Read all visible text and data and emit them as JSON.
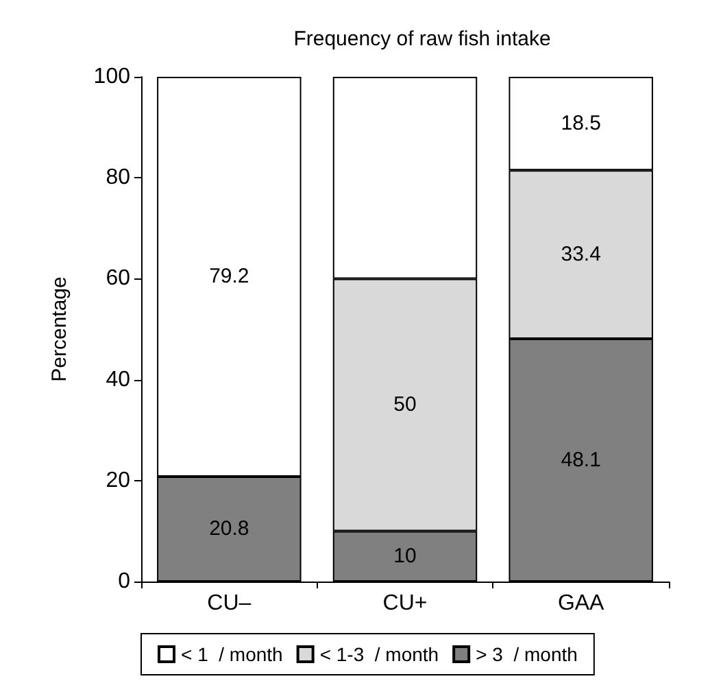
{
  "chart_data": {
    "type": "bar",
    "stacked": true,
    "title": "Frequency of raw fish intake",
    "ylabel": "Percentage",
    "categories": [
      "CU–",
      "CU+",
      "GAA"
    ],
    "series": [
      {
        "name": "> 3  / month",
        "color": "#808080",
        "values": [
          20.8,
          10,
          48.1
        ],
        "value_labels": [
          "20.8",
          "10",
          "48.1"
        ]
      },
      {
        "name": "< 1-3  / month",
        "color": "#d9d9d9",
        "values": [
          null,
          50,
          33.4
        ],
        "value_labels": [
          null,
          "50",
          "33.4"
        ]
      },
      {
        "name": "< 1  / month",
        "color": "#ffffff",
        "values": [
          79.2,
          40,
          18.5
        ],
        "value_labels": [
          "79.2",
          null,
          "18.5"
        ]
      }
    ],
    "ylim": [
      0,
      100
    ],
    "yticks": [
      0,
      20,
      40,
      60,
      80,
      100
    ],
    "grid": false,
    "legend": "bottom"
  }
}
